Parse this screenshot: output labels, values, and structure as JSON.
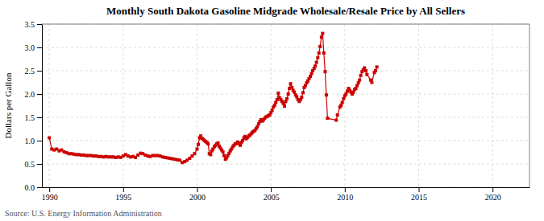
{
  "chart_data": {
    "type": "line",
    "title": "Monthly South Dakota Gasoline Midgrade Wholesale/Resale Price by All Sellers",
    "ylabel": "Dollars per Gallon",
    "annotations": [
      "Source: U.S. Energy Information Administration"
    ],
    "color": "#cc0000",
    "marker": "square",
    "grid": true,
    "xlim": [
      1989.5,
      2022.5
    ],
    "ylim": [
      0.0,
      3.5
    ],
    "xticks": [
      1990,
      1995,
      2000,
      2005,
      2010,
      2015,
      2020
    ],
    "yticks": [
      {
        "value": 0.0,
        "label": "0.0"
      },
      0.5,
      {
        "value": 1.0,
        "label": "1.0"
      },
      1.5,
      {
        "value": 2.0,
        "label": "2.0"
      },
      2.5,
      {
        "value": 3.0,
        "label": "3.0"
      },
      3.5
    ],
    "x": [
      1990.0,
      1990.17,
      1990.33,
      1990.5,
      1990.67,
      1990.83,
      1991.0,
      1991.17,
      1991.33,
      1991.5,
      1991.67,
      1991.83,
      1992.0,
      1992.17,
      1992.33,
      1992.5,
      1992.67,
      1992.83,
      1993.0,
      1993.17,
      1993.33,
      1993.5,
      1993.67,
      1993.83,
      1994.0,
      1994.17,
      1994.33,
      1994.5,
      1994.67,
      1994.83,
      1995.0,
      1995.17,
      1995.33,
      1995.5,
      1995.67,
      1995.83,
      1996.0,
      1996.17,
      1996.33,
      1996.5,
      1996.67,
      1996.83,
      1997.0,
      1997.17,
      1997.33,
      1997.5,
      1997.67,
      1997.83,
      1998.0,
      1998.17,
      1998.33,
      1998.5,
      1998.67,
      1998.83,
      1999.0,
      1999.17,
      1999.33,
      1999.5,
      1999.67,
      1999.83,
      2000.0,
      2000.08,
      2000.17,
      2000.25,
      2000.33,
      2000.42,
      2000.5,
      2000.58,
      2000.67,
      2000.75,
      2000.83,
      2000.92,
      2001.0,
      2001.08,
      2001.17,
      2001.25,
      2001.33,
      2001.42,
      2001.5,
      2001.58,
      2001.67,
      2001.75,
      2001.83,
      2001.92,
      2002.0,
      2002.08,
      2002.17,
      2002.25,
      2002.33,
      2002.42,
      2002.5,
      2002.58,
      2002.67,
      2002.75,
      2002.83,
      2002.92,
      2003.0,
      2003.08,
      2003.17,
      2003.25,
      2003.33,
      2003.42,
      2003.5,
      2003.58,
      2003.67,
      2003.75,
      2003.83,
      2003.92,
      2004.0,
      2004.08,
      2004.17,
      2004.25,
      2004.33,
      2004.42,
      2004.5,
      2004.58,
      2004.67,
      2004.75,
      2004.83,
      2004.92,
      2005.0,
      2005.08,
      2005.17,
      2005.25,
      2005.33,
      2005.42,
      2005.5,
      2005.58,
      2005.67,
      2005.75,
      2005.83,
      2005.92,
      2006.0,
      2006.08,
      2006.17,
      2006.25,
      2006.33,
      2006.42,
      2006.5,
      2006.58,
      2006.67,
      2006.75,
      2006.83,
      2006.92,
      2007.0,
      2007.08,
      2007.17,
      2007.25,
      2007.33,
      2007.42,
      2007.5,
      2007.58,
      2007.67,
      2007.75,
      2007.83,
      2007.92,
      2008.0,
      2008.08,
      2008.17,
      2008.25,
      2008.33,
      2008.42,
      2008.5,
      2008.58,
      2008.67,
      2008.75,
      2008.83,
      2009.42,
      2009.5,
      2009.67,
      2009.75,
      2009.83,
      2009.92,
      2010.0,
      2010.08,
      2010.17,
      2010.25,
      2010.33,
      2010.42,
      2010.5,
      2010.58,
      2010.67,
      2010.75,
      2010.83,
      2010.92,
      2011.0,
      2011.08,
      2011.17,
      2011.25,
      2011.33,
      2011.42,
      2011.5,
      2011.75,
      2011.83,
      2012.0,
      2012.08,
      2012.17
    ],
    "values": [
      1.06,
      0.82,
      0.8,
      0.82,
      0.78,
      0.8,
      0.76,
      0.74,
      0.72,
      0.72,
      0.71,
      0.7,
      0.7,
      0.69,
      0.69,
      0.68,
      0.68,
      0.68,
      0.67,
      0.67,
      0.66,
      0.66,
      0.65,
      0.66,
      0.65,
      0.65,
      0.65,
      0.64,
      0.65,
      0.64,
      0.67,
      0.7,
      0.67,
      0.65,
      0.66,
      0.64,
      0.69,
      0.73,
      0.72,
      0.69,
      0.67,
      0.66,
      0.68,
      0.68,
      0.68,
      0.67,
      0.65,
      0.64,
      0.63,
      0.62,
      0.61,
      0.6,
      0.59,
      0.58,
      0.53,
      0.55,
      0.58,
      0.62,
      0.67,
      0.72,
      0.82,
      0.92,
      1.06,
      1.1,
      1.05,
      1.03,
      1.0,
      0.98,
      0.96,
      0.93,
      0.72,
      0.7,
      0.78,
      0.82,
      0.87,
      0.9,
      0.93,
      0.95,
      0.88,
      0.84,
      0.8,
      0.76,
      0.68,
      0.6,
      0.63,
      0.68,
      0.73,
      0.78,
      0.82,
      0.87,
      0.9,
      0.93,
      0.94,
      0.97,
      0.94,
      0.9,
      0.96,
      1.0,
      1.06,
      1.09,
      1.04,
      1.07,
      1.1,
      1.12,
      1.15,
      1.18,
      1.2,
      1.22,
      1.26,
      1.3,
      1.36,
      1.41,
      1.45,
      1.42,
      1.45,
      1.48,
      1.51,
      1.52,
      1.54,
      1.55,
      1.6,
      1.65,
      1.72,
      1.76,
      1.82,
      1.88,
      2.02,
      1.92,
      1.88,
      1.84,
      1.8,
      1.74,
      1.84,
      1.9,
      2.0,
      2.12,
      2.22,
      2.14,
      2.08,
      2.04,
      1.98,
      1.94,
      1.88,
      1.84,
      1.88,
      1.93,
      2.03,
      2.14,
      2.18,
      2.24,
      2.28,
      2.33,
      2.38,
      2.44,
      2.5,
      2.55,
      2.6,
      2.68,
      2.78,
      2.88,
      3.02,
      3.22,
      3.3,
      2.88,
      2.48,
      1.98,
      1.48,
      1.44,
      1.55,
      1.72,
      1.76,
      1.82,
      1.9,
      1.96,
      2.0,
      2.06,
      2.12,
      2.08,
      2.04,
      2.0,
      2.04,
      2.1,
      2.12,
      2.18,
      2.24,
      2.3,
      2.4,
      2.48,
      2.52,
      2.56,
      2.5,
      2.42,
      2.3,
      2.25,
      2.46,
      2.5,
      2.58
    ]
  }
}
